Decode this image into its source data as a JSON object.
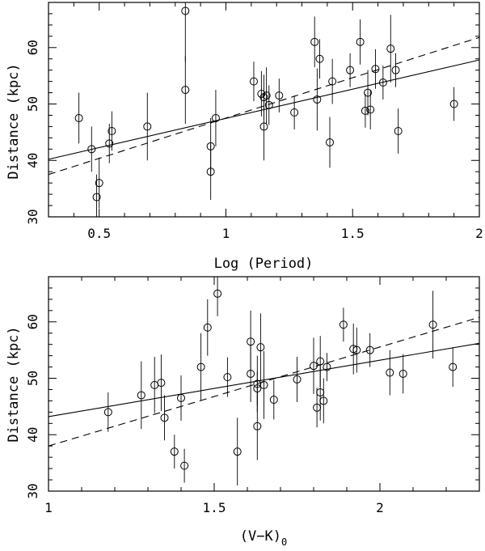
{
  "chart_data": [
    {
      "type": "scatter",
      "xlabel": "Log (Period)",
      "ylabel": "Distance (kpc)",
      "xlim": [
        0.3,
        2.0
      ],
      "ylim": [
        30,
        68
      ],
      "xticks_major": [
        0.5,
        1,
        1.5,
        2
      ],
      "xtick_labels": [
        "0.5",
        "1",
        "1.5",
        "2"
      ],
      "yticks_major": [
        30,
        40,
        50,
        60
      ],
      "ytick_labels": [
        "30",
        "40",
        "50",
        "60"
      ],
      "points": [
        {
          "x": 0.42,
          "y": 47.5,
          "err": 4.5
        },
        {
          "x": 0.47,
          "y": 42.0,
          "err": 4.0
        },
        {
          "x": 0.49,
          "y": 33.5,
          "err": 4.0
        },
        {
          "x": 0.5,
          "y": 36.0,
          "err": 4.5
        },
        {
          "x": 0.54,
          "y": 43.0,
          "err": 3.5
        },
        {
          "x": 0.55,
          "y": 45.2,
          "err": 3.5
        },
        {
          "x": 0.69,
          "y": 46.0,
          "err": 6.0
        },
        {
          "x": 0.84,
          "y": 66.5,
          "err": 9.0
        },
        {
          "x": 0.84,
          "y": 52.5,
          "err": 6.0
        },
        {
          "x": 0.94,
          "y": 42.5,
          "err": 5.0
        },
        {
          "x": 0.94,
          "y": 38.0,
          "err": 5.0
        },
        {
          "x": 0.96,
          "y": 47.5,
          "err": 5.0
        },
        {
          "x": 1.11,
          "y": 54.0,
          "err": 3.5
        },
        {
          "x": 1.14,
          "y": 51.8,
          "err": 4.0
        },
        {
          "x": 1.15,
          "y": 51.2,
          "err": 4.0
        },
        {
          "x": 1.15,
          "y": 46.0,
          "err": 6.0
        },
        {
          "x": 1.16,
          "y": 51.5,
          "err": 5.0
        },
        {
          "x": 1.17,
          "y": 49.8,
          "err": 3.5
        },
        {
          "x": 1.21,
          "y": 51.5,
          "err": 3.0
        },
        {
          "x": 1.27,
          "y": 48.5,
          "err": 3.0
        },
        {
          "x": 1.35,
          "y": 61.0,
          "err": 4.5
        },
        {
          "x": 1.36,
          "y": 50.8,
          "err": 5.5
        },
        {
          "x": 1.37,
          "y": 58.0,
          "err": 3.5
        },
        {
          "x": 1.41,
          "y": 43.2,
          "err": 4.5
        },
        {
          "x": 1.42,
          "y": 54.0,
          "err": 4.0
        },
        {
          "x": 1.49,
          "y": 56.0,
          "err": 3.0
        },
        {
          "x": 1.53,
          "y": 61.0,
          "err": 4.0
        },
        {
          "x": 1.55,
          "y": 48.8,
          "err": 3.0
        },
        {
          "x": 1.56,
          "y": 52.0,
          "err": 4.0
        },
        {
          "x": 1.57,
          "y": 49.0,
          "err": 3.5
        },
        {
          "x": 1.59,
          "y": 56.2,
          "err": 3.5
        },
        {
          "x": 1.62,
          "y": 53.8,
          "err": 3.0
        },
        {
          "x": 1.65,
          "y": 59.8,
          "err": 6.0
        },
        {
          "x": 1.67,
          "y": 56.0,
          "err": 3.0
        },
        {
          "x": 1.68,
          "y": 45.2,
          "err": 4.0
        },
        {
          "x": 1.9,
          "y": 50.0,
          "err": 3.0
        }
      ],
      "fits": [
        {
          "style": "solid",
          "x": [
            0.3,
            2.0
          ],
          "y": [
            40.2,
            57.8
          ]
        },
        {
          "style": "dashed",
          "x": [
            0.3,
            2.0
          ],
          "y": [
            37.5,
            61.8
          ]
        }
      ]
    },
    {
      "type": "scatter",
      "xlabel": "(V−K)",
      "xlabel_subscript": "0",
      "ylabel": "Distance (kpc)",
      "xlim": [
        1.0,
        2.3
      ],
      "ylim": [
        30,
        68
      ],
      "xticks_major": [
        1,
        1.5,
        2
      ],
      "xtick_labels": [
        "1",
        "1.5",
        "2"
      ],
      "yticks_major": [
        30,
        40,
        50,
        60
      ],
      "ytick_labels": [
        "30",
        "40",
        "50",
        "60"
      ],
      "points": [
        {
          "x": 1.18,
          "y": 44.0,
          "err": 3.5
        },
        {
          "x": 1.28,
          "y": 47.0,
          "err": 6.0
        },
        {
          "x": 1.32,
          "y": 48.8,
          "err": 5.0
        },
        {
          "x": 1.34,
          "y": 49.2,
          "err": 5.0
        },
        {
          "x": 1.35,
          "y": 43.0,
          "err": 4.0
        },
        {
          "x": 1.38,
          "y": 37.0,
          "err": 3.0
        },
        {
          "x": 1.4,
          "y": 46.5,
          "err": 4.0
        },
        {
          "x": 1.41,
          "y": 34.5,
          "err": 3.0
        },
        {
          "x": 1.46,
          "y": 52.0,
          "err": 6.0
        },
        {
          "x": 1.48,
          "y": 59.0,
          "err": 5.0
        },
        {
          "x": 1.51,
          "y": 65.0,
          "err": 4.0
        },
        {
          "x": 1.54,
          "y": 50.2,
          "err": 3.5
        },
        {
          "x": 1.57,
          "y": 37.0,
          "err": 6.0
        },
        {
          "x": 1.61,
          "y": 56.5,
          "err": 5.5
        },
        {
          "x": 1.61,
          "y": 50.8,
          "err": 5.0
        },
        {
          "x": 1.63,
          "y": 49.0,
          "err": 5.0
        },
        {
          "x": 1.63,
          "y": 48.2,
          "err": 3.0
        },
        {
          "x": 1.63,
          "y": 41.5,
          "err": 6.0
        },
        {
          "x": 1.64,
          "y": 55.5,
          "err": 6.0
        },
        {
          "x": 1.65,
          "y": 48.8,
          "err": 6.0
        },
        {
          "x": 1.68,
          "y": 46.2,
          "err": 3.5
        },
        {
          "x": 1.75,
          "y": 49.8,
          "err": 4.0
        },
        {
          "x": 1.8,
          "y": 52.2,
          "err": 5.0
        },
        {
          "x": 1.81,
          "y": 44.8,
          "err": 3.5
        },
        {
          "x": 1.82,
          "y": 53.0,
          "err": 4.5
        },
        {
          "x": 1.82,
          "y": 47.5,
          "err": 5.0
        },
        {
          "x": 1.83,
          "y": 46.0,
          "err": 4.0
        },
        {
          "x": 1.84,
          "y": 52.0,
          "err": 2.5
        },
        {
          "x": 1.89,
          "y": 59.5,
          "err": 3.0
        },
        {
          "x": 1.92,
          "y": 55.2,
          "err": 4.5
        },
        {
          "x": 1.93,
          "y": 55.0,
          "err": 4.0
        },
        {
          "x": 1.97,
          "y": 55.0,
          "err": 3.0
        },
        {
          "x": 2.03,
          "y": 51.0,
          "err": 4.0
        },
        {
          "x": 2.07,
          "y": 50.8,
          "err": 3.5
        },
        {
          "x": 2.16,
          "y": 59.5,
          "err": 6.0
        },
        {
          "x": 2.22,
          "y": 52.0,
          "err": 3.5
        }
      ],
      "fits": [
        {
          "style": "solid",
          "x": [
            1.0,
            2.3
          ],
          "y": [
            43.2,
            56.2
          ]
        },
        {
          "style": "dashed",
          "x": [
            1.0,
            2.3
          ],
          "y": [
            38.0,
            60.8
          ]
        }
      ]
    }
  ]
}
